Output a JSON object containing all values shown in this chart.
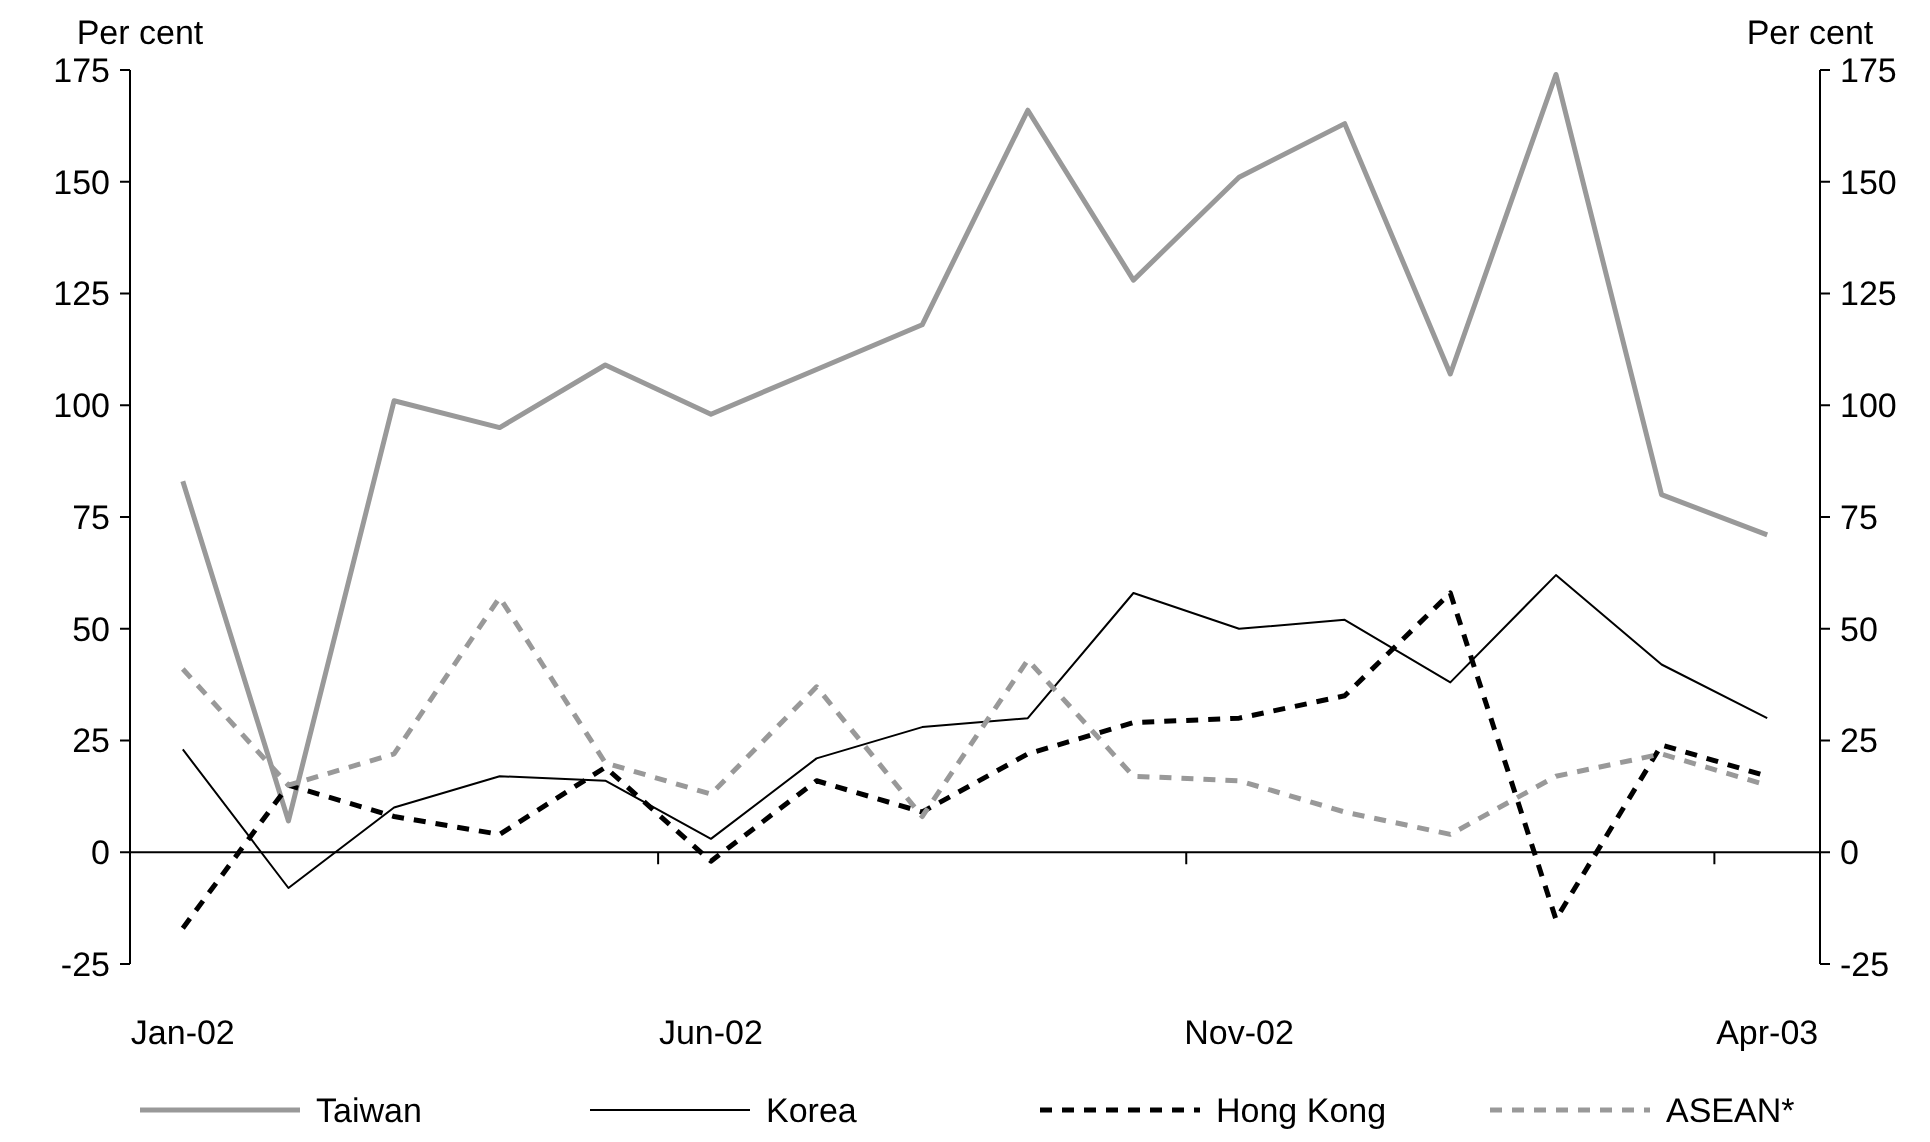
{
  "chart_data": {
    "type": "line",
    "ylabel": "Per cent",
    "y2label": "Per cent",
    "categories": [
      "Jan-02",
      null,
      null,
      null,
      null,
      "Jun-02",
      null,
      null,
      null,
      null,
      "Nov-02",
      null,
      null,
      null,
      null,
      "Apr-03"
    ],
    "series": [
      {
        "name": "Taiwan",
        "color": "#999999",
        "line_style": "solid",
        "values": [
          83,
          7,
          101,
          95,
          109,
          98,
          108,
          118,
          166,
          128,
          151,
          163,
          107,
          174,
          80,
          71
        ]
      },
      {
        "name": "Korea",
        "color": "#000000",
        "line_style": "solid",
        "values": [
          23,
          -8,
          10,
          17,
          16,
          3,
          21,
          28,
          30,
          58,
          50,
          52,
          38,
          62,
          42,
          30
        ]
      },
      {
        "name": "Hong Kong",
        "color": "#000000",
        "line_style": "dashed",
        "values": [
          -17,
          15,
          8,
          4,
          19,
          -2,
          16,
          9,
          22,
          29,
          30,
          35,
          58,
          -15,
          24,
          17
        ]
      },
      {
        "name": "ASEAN*",
        "color": "#999999",
        "line_style": "dashed",
        "values": [
          41,
          15,
          22,
          57,
          20,
          13,
          37,
          8,
          43,
          17,
          16,
          9,
          4,
          17,
          22,
          15
        ]
      }
    ],
    "ylim": [
      -25,
      175
    ],
    "yticks": [
      -25,
      0,
      25,
      50,
      75,
      100,
      125,
      150,
      175
    ],
    "y2lim": [
      -25,
      175
    ],
    "y2ticks": [
      -25,
      0,
      25,
      50,
      75,
      100,
      125,
      150,
      175
    ],
    "legend": "bottom",
    "marker": "none"
  }
}
